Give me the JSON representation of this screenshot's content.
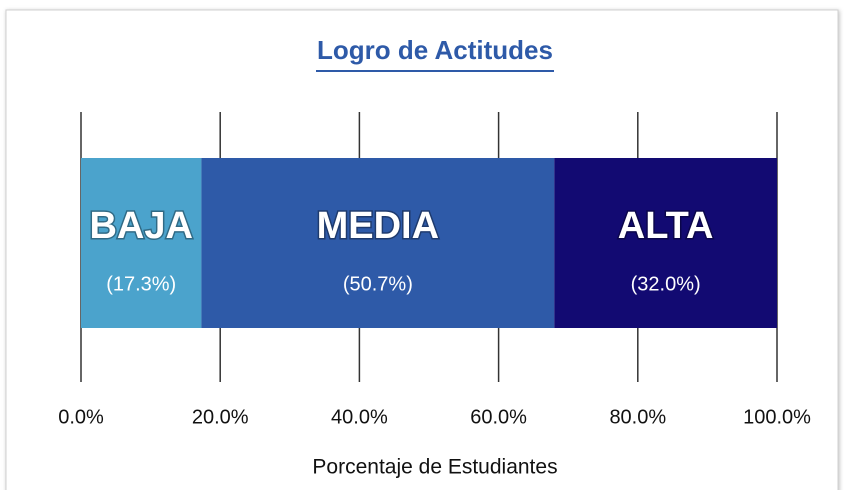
{
  "chart_data": {
    "type": "stacked-bar-horizontal",
    "title": "Logro de Actitudes",
    "x_label": "Porcentaje de Estudiantes",
    "xlim": [
      0,
      100
    ],
    "xticks": [
      {
        "value": 0,
        "label": "0.0%"
      },
      {
        "value": 20,
        "label": "20.0%"
      },
      {
        "value": 40,
        "label": "40.0%"
      },
      {
        "value": 60,
        "label": "60.0%"
      },
      {
        "value": 80,
        "label": "80.0%"
      },
      {
        "value": 100,
        "label": "100.0%"
      }
    ],
    "grid": true,
    "series": [
      {
        "name": "BAJA",
        "color": "#4ba3cc",
        "values": [
          17.3
        ],
        "value_labels": [
          "(17.3%)"
        ]
      },
      {
        "name": "MEDIA",
        "color": "#2e5aa8",
        "values": [
          50.7
        ],
        "value_labels": [
          "(50.7%)"
        ]
      },
      {
        "name": "ALTA",
        "color": "#120a72",
        "values": [
          32.0
        ],
        "value_labels": [
          "(32.0%)"
        ]
      }
    ]
  }
}
